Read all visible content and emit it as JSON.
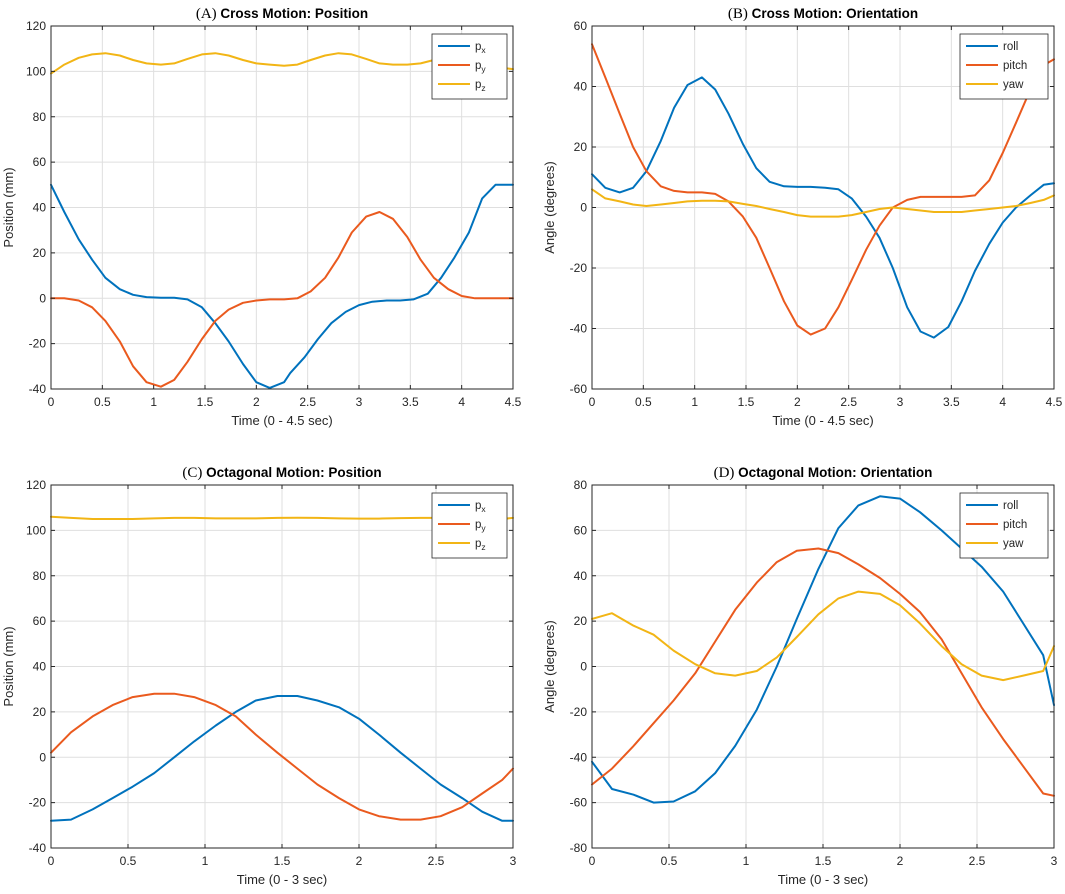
{
  "colors": {
    "blue": "#0072BD",
    "orange": "#EA5A1E",
    "yellow": "#F2B515"
  },
  "chart_data": [
    {
      "type": "line",
      "prefix": "(A)",
      "title": "Cross Motion: Position",
      "xlabel": "Time (0 - 4.5 sec)",
      "ylabel": "Position (mm)",
      "xlim": [
        0,
        4.5
      ],
      "ylim": [
        -40,
        120
      ],
      "xticks": [
        0,
        0.5,
        1,
        1.5,
        2,
        2.5,
        3,
        3.5,
        4,
        4.5
      ],
      "xtick_labels": [
        "0",
        "0.5",
        "1",
        "1.5",
        "2",
        "2.5",
        "3",
        "3.5",
        "4",
        "4.5"
      ],
      "yticks": [
        -40,
        -20,
        0,
        20,
        40,
        60,
        80,
        100,
        120
      ],
      "ytick_labels": [
        "-40",
        "-20",
        "0",
        "20",
        "40",
        "60",
        "80",
        "100",
        "120"
      ],
      "grid": true,
      "legend_position": "top-right",
      "series": [
        {
          "name": "p",
          "sub": "x",
          "color": "blue",
          "x": [
            0,
            0.13,
            0.27,
            0.4,
            0.53,
            0.67,
            0.8,
            0.93,
            1.07,
            1.2,
            1.33,
            1.47,
            1.6,
            1.73,
            1.87,
            2.0,
            2.13,
            2.27,
            2.33,
            2.47,
            2.6,
            2.73,
            2.87,
            3.0,
            3.13,
            3.27,
            3.4,
            3.53,
            3.67,
            3.8,
            3.93,
            4.07,
            4.2,
            4.33,
            4.5
          ],
          "y": [
            50,
            38,
            26,
            17,
            9,
            4,
            1.5,
            0.5,
            0.2,
            0.2,
            -0.5,
            -4,
            -11,
            -19,
            -29,
            -37,
            -39.5,
            -37,
            -33,
            -26,
            -18,
            -11,
            -6,
            -3,
            -1.5,
            -1,
            -1,
            -0.5,
            2,
            9,
            18,
            29,
            44,
            50,
            50
          ]
        },
        {
          "name": "p",
          "sub": "y",
          "color": "orange",
          "x": [
            0,
            0.13,
            0.27,
            0.4,
            0.53,
            0.67,
            0.8,
            0.93,
            1.07,
            1.2,
            1.33,
            1.47,
            1.6,
            1.73,
            1.87,
            2.0,
            2.13,
            2.27,
            2.4,
            2.53,
            2.67,
            2.8,
            2.93,
            3.07,
            3.2,
            3.33,
            3.47,
            3.6,
            3.73,
            3.87,
            4.0,
            4.13,
            4.27,
            4.4,
            4.5
          ],
          "y": [
            0,
            0,
            -1,
            -4,
            -10,
            -19,
            -30,
            -37,
            -39,
            -36,
            -28,
            -18,
            -10,
            -5,
            -2,
            -1,
            -0.5,
            -0.5,
            0,
            3,
            9,
            18,
            29,
            36,
            38,
            35,
            27,
            17,
            9,
            4,
            1,
            0,
            0,
            0,
            0
          ]
        },
        {
          "name": "p",
          "sub": "z",
          "color": "yellow",
          "x": [
            0,
            0.13,
            0.27,
            0.4,
            0.53,
            0.67,
            0.8,
            0.93,
            1.07,
            1.2,
            1.33,
            1.47,
            1.6,
            1.73,
            1.87,
            2.0,
            2.13,
            2.27,
            2.4,
            2.53,
            2.67,
            2.8,
            2.93,
            3.07,
            3.2,
            3.33,
            3.47,
            3.6,
            3.73,
            3.87,
            4.0,
            4.13,
            4.27,
            4.4,
            4.5
          ],
          "y": [
            99,
            103,
            106,
            107.5,
            108,
            107,
            105,
            103.5,
            103,
            103.5,
            105.5,
            107.5,
            108,
            107,
            105,
            103.5,
            103,
            102.5,
            103,
            105,
            107,
            108,
            107.5,
            105.5,
            103.5,
            103,
            103,
            103.5,
            105,
            106,
            106.5,
            105,
            103,
            101.5,
            101
          ]
        }
      ]
    },
    {
      "type": "line",
      "prefix": "(B)",
      "title": "Cross Motion: Orientation",
      "xlabel": "Time (0 - 4.5 sec)",
      "ylabel": "Angle (degrees)",
      "xlim": [
        0,
        4.5
      ],
      "ylim": [
        -60,
        60
      ],
      "xticks": [
        0,
        0.5,
        1,
        1.5,
        2,
        2.5,
        3,
        3.5,
        4,
        4.5
      ],
      "xtick_labels": [
        "0",
        "0.5",
        "1",
        "1.5",
        "2",
        "2.5",
        "3",
        "3.5",
        "4",
        "4.5"
      ],
      "yticks": [
        -60,
        -40,
        -20,
        0,
        20,
        40,
        60
      ],
      "ytick_labels": [
        "-60",
        "-40",
        "-20",
        "0",
        "20",
        "40",
        "60"
      ],
      "grid": true,
      "legend_position": "top-right",
      "series": [
        {
          "name": "roll",
          "sub": "",
          "color": "blue",
          "x": [
            0,
            0.13,
            0.27,
            0.4,
            0.53,
            0.67,
            0.8,
            0.93,
            1.07,
            1.2,
            1.33,
            1.47,
            1.6,
            1.73,
            1.87,
            2.0,
            2.13,
            2.27,
            2.4,
            2.53,
            2.67,
            2.8,
            2.93,
            3.07,
            3.2,
            3.33,
            3.47,
            3.6,
            3.73,
            3.87,
            4.0,
            4.13,
            4.27,
            4.4,
            4.5
          ],
          "y": [
            11,
            6.5,
            5,
            6.5,
            12,
            22,
            33,
            40.5,
            43,
            39,
            31,
            21,
            13,
            8.5,
            7,
            6.8,
            6.8,
            6.5,
            6,
            3,
            -3,
            -10,
            -20,
            -33,
            -41,
            -43,
            -39.5,
            -31,
            -21,
            -12,
            -5,
            0,
            4,
            7.5,
            8
          ]
        },
        {
          "name": "pitch",
          "sub": "",
          "color": "orange",
          "x": [
            0,
            0.13,
            0.27,
            0.4,
            0.53,
            0.67,
            0.8,
            0.93,
            1.07,
            1.2,
            1.33,
            1.47,
            1.6,
            1.73,
            1.87,
            2.0,
            2.13,
            2.27,
            2.4,
            2.53,
            2.67,
            2.8,
            2.93,
            3.07,
            3.2,
            3.33,
            3.47,
            3.6,
            3.73,
            3.87,
            4.0,
            4.13,
            4.27,
            4.4,
            4.5
          ],
          "y": [
            54,
            43,
            31,
            20,
            12,
            7,
            5.5,
            5,
            5,
            4.5,
            2,
            -3,
            -10,
            -20,
            -31,
            -39,
            -42,
            -40,
            -33,
            -24,
            -14,
            -6,
            0,
            2.5,
            3.5,
            3.5,
            3.5,
            3.5,
            4,
            9,
            18,
            28,
            39,
            47,
            49
          ]
        },
        {
          "name": "yaw",
          "sub": "",
          "color": "yellow",
          "x": [
            0,
            0.13,
            0.27,
            0.4,
            0.53,
            0.67,
            0.8,
            0.93,
            1.07,
            1.2,
            1.33,
            1.47,
            1.6,
            1.73,
            1.87,
            2.0,
            2.13,
            2.27,
            2.4,
            2.53,
            2.67,
            2.8,
            2.93,
            3.07,
            3.2,
            3.33,
            3.47,
            3.6,
            3.73,
            3.87,
            4.0,
            4.13,
            4.27,
            4.4,
            4.5
          ],
          "y": [
            6,
            3,
            2,
            1,
            0.5,
            1,
            1.5,
            2,
            2.2,
            2.2,
            2,
            1.2,
            0.5,
            -0.5,
            -1.5,
            -2.5,
            -3,
            -3,
            -3,
            -2.5,
            -1.5,
            -0.5,
            0,
            -0.5,
            -1,
            -1.5,
            -1.5,
            -1.5,
            -1,
            -0.5,
            0,
            0.5,
            1.5,
            2.5,
            4
          ]
        }
      ]
    },
    {
      "type": "line",
      "prefix": "(C)",
      "title": "Octagonal Motion: Position",
      "xlabel": "Time (0 - 3 sec)",
      "ylabel": "Position (mm)",
      "xlim": [
        0,
        3
      ],
      "ylim": [
        -40,
        120
      ],
      "xticks": [
        0,
        0.5,
        1,
        1.5,
        2,
        2.5,
        3
      ],
      "xtick_labels": [
        "0",
        "0.5",
        "1",
        "1.5",
        "2",
        "2.5",
        "3"
      ],
      "yticks": [
        -40,
        -20,
        0,
        20,
        40,
        60,
        80,
        100,
        120
      ],
      "ytick_labels": [
        "-40",
        "-20",
        "0",
        "20",
        "40",
        "60",
        "80",
        "100",
        "120"
      ],
      "grid": true,
      "legend_position": "top-right",
      "series": [
        {
          "name": "p",
          "sub": "x",
          "color": "blue",
          "x": [
            0,
            0.13,
            0.27,
            0.4,
            0.53,
            0.67,
            0.8,
            0.93,
            1.07,
            1.2,
            1.33,
            1.47,
            1.6,
            1.73,
            1.87,
            2.0,
            2.13,
            2.27,
            2.4,
            2.53,
            2.67,
            2.8,
            2.93,
            3.0
          ],
          "y": [
            -28,
            -27.5,
            -23,
            -18,
            -13,
            -7,
            0,
            7,
            14,
            20,
            25,
            27,
            27,
            25,
            22,
            17,
            10,
            2,
            -5,
            -12,
            -18,
            -24,
            -28,
            -28
          ]
        },
        {
          "name": "p",
          "sub": "y",
          "color": "orange",
          "x": [
            0,
            0.13,
            0.27,
            0.4,
            0.53,
            0.67,
            0.8,
            0.93,
            1.07,
            1.2,
            1.33,
            1.47,
            1.6,
            1.73,
            1.87,
            2.0,
            2.13,
            2.27,
            2.4,
            2.53,
            2.67,
            2.8,
            2.93,
            3.0
          ],
          "y": [
            2,
            11,
            18,
            23,
            26.5,
            28,
            28,
            26.5,
            23,
            18,
            10,
            2,
            -5,
            -12,
            -18,
            -23,
            -26,
            -27.5,
            -27.5,
            -26,
            -22,
            -16,
            -10,
            -5
          ]
        },
        {
          "name": "p",
          "sub": "z",
          "color": "yellow",
          "x": [
            0,
            0.13,
            0.27,
            0.4,
            0.53,
            0.67,
            0.8,
            0.93,
            1.07,
            1.2,
            1.33,
            1.47,
            1.6,
            1.73,
            1.87,
            2.0,
            2.13,
            2.27,
            2.4,
            2.53,
            2.67,
            2.8,
            2.93,
            3.0
          ],
          "y": [
            106,
            105.5,
            105,
            105,
            105,
            105.3,
            105.5,
            105.5,
            105.3,
            105.3,
            105.3,
            105.5,
            105.6,
            105.5,
            105.3,
            105.2,
            105.2,
            105.4,
            105.5,
            105.5,
            105.3,
            105,
            105,
            105.5
          ]
        }
      ]
    },
    {
      "type": "line",
      "prefix": "(D)",
      "title": "Octagonal Motion: Orientation",
      "xlabel": "Time (0 - 3 sec)",
      "ylabel": "Angle (degrees)",
      "xlim": [
        0,
        3
      ],
      "ylim": [
        -80,
        80
      ],
      "xticks": [
        0,
        0.5,
        1,
        1.5,
        2,
        2.5,
        3
      ],
      "xtick_labels": [
        "0",
        "0.5",
        "1",
        "1.5",
        "2",
        "2.5",
        "3"
      ],
      "yticks": [
        -80,
        -60,
        -40,
        -20,
        0,
        20,
        40,
        60,
        80
      ],
      "ytick_labels": [
        "-80",
        "-60",
        "-40",
        "-20",
        "0",
        "20",
        "40",
        "60",
        "80"
      ],
      "grid": true,
      "legend_position": "top-right",
      "series": [
        {
          "name": "roll",
          "sub": "",
          "color": "blue",
          "x": [
            0,
            0.13,
            0.27,
            0.4,
            0.53,
            0.67,
            0.8,
            0.93,
            1.07,
            1.2,
            1.33,
            1.47,
            1.6,
            1.73,
            1.87,
            2.0,
            2.13,
            2.27,
            2.4,
            2.53,
            2.67,
            2.8,
            2.93,
            3.0
          ],
          "y": [
            -42,
            -54,
            -56.5,
            -60,
            -59.5,
            -55,
            -47,
            -35,
            -19,
            0,
            21,
            43,
            61,
            71,
            75,
            74,
            68,
            60,
            52,
            44,
            33,
            19,
            5,
            -17
          ]
        },
        {
          "name": "pitch",
          "sub": "",
          "color": "orange",
          "x": [
            0,
            0.13,
            0.27,
            0.4,
            0.53,
            0.67,
            0.8,
            0.93,
            1.07,
            1.2,
            1.33,
            1.47,
            1.6,
            1.73,
            1.87,
            2.0,
            2.13,
            2.27,
            2.4,
            2.53,
            2.67,
            2.8,
            2.93,
            3.0
          ],
          "y": [
            -52,
            -45,
            -35,
            -25,
            -15,
            -3,
            11,
            25,
            37,
            46,
            51,
            52,
            50,
            45,
            39,
            32,
            24,
            12,
            -3,
            -18,
            -32,
            -44,
            -56,
            -57
          ]
        },
        {
          "name": "yaw",
          "sub": "",
          "color": "yellow",
          "x": [
            0,
            0.13,
            0.27,
            0.4,
            0.53,
            0.67,
            0.8,
            0.93,
            1.07,
            1.2,
            1.33,
            1.47,
            1.6,
            1.73,
            1.87,
            2.0,
            2.13,
            2.27,
            2.4,
            2.53,
            2.67,
            2.8,
            2.93,
            3.0
          ],
          "y": [
            21,
            23.5,
            18,
            14,
            7,
            1,
            -3,
            -4,
            -2,
            4,
            13,
            23,
            30,
            33,
            32,
            27,
            19,
            9,
            1,
            -4,
            -6,
            -4,
            -2,
            9
          ]
        }
      ]
    }
  ]
}
